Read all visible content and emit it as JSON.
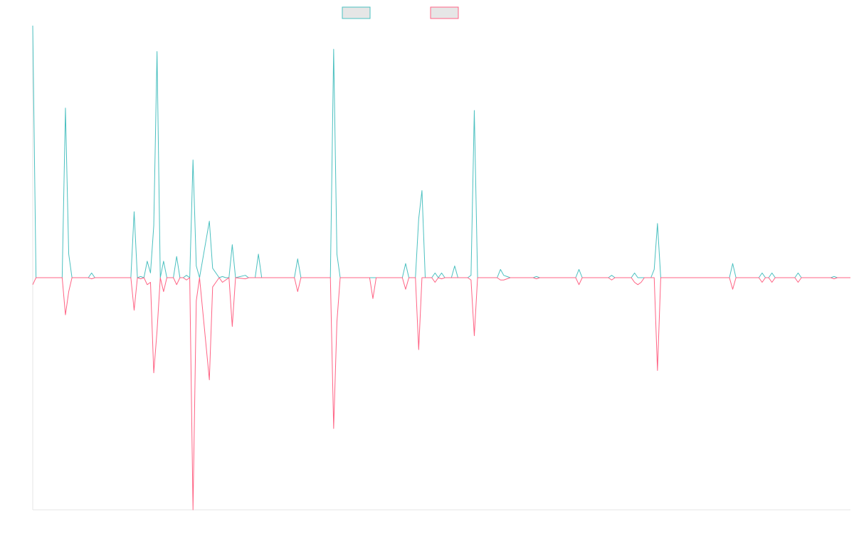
{
  "chart_data": {
    "type": "line",
    "title": "",
    "xlabel": "",
    "ylabel": "",
    "grid": false,
    "legend_position": "top-center",
    "x_count": 231,
    "ylim": [
      -1,
      1.07
    ],
    "series": [
      {
        "name": "",
        "color": "#4bc0c0",
        "fill": "#e6e6e6",
        "points": [
          [
            0,
            1.07
          ],
          [
            1,
            0
          ],
          [
            9,
            0
          ],
          [
            10,
            0.72
          ],
          [
            11,
            0.1
          ],
          [
            12,
            0
          ],
          [
            17,
            0
          ],
          [
            18,
            0.02
          ],
          [
            19,
            0
          ],
          [
            30,
            0
          ],
          [
            31,
            0.28
          ],
          [
            32,
            0
          ],
          [
            33,
            0.005
          ],
          [
            34,
            0
          ],
          [
            35,
            0.07
          ],
          [
            36,
            0.02
          ],
          [
            37,
            0.22
          ],
          [
            38,
            0.96
          ],
          [
            39,
            0
          ],
          [
            40,
            0.07
          ],
          [
            41,
            0
          ],
          [
            43,
            0
          ],
          [
            44,
            0.09
          ],
          [
            45,
            0
          ],
          [
            46,
            0
          ],
          [
            47,
            0.01
          ],
          [
            48,
            0
          ],
          [
            49,
            0.5
          ],
          [
            50,
            0.05
          ],
          [
            51,
            0
          ],
          [
            54,
            0.24
          ],
          [
            55,
            0.04
          ],
          [
            56,
            0.02
          ],
          [
            57,
            0
          ],
          [
            58,
            0.005
          ],
          [
            59,
            0
          ],
          [
            60,
            0
          ],
          [
            61,
            0.14
          ],
          [
            62,
            0
          ],
          [
            65,
            0.01
          ],
          [
            66,
            0
          ],
          [
            68,
            0
          ],
          [
            69,
            0.1
          ],
          [
            70,
            0
          ],
          [
            80,
            0
          ],
          [
            81,
            0.08
          ],
          [
            82,
            0
          ],
          [
            91,
            0
          ],
          [
            92,
            0.97
          ],
          [
            93,
            0.1
          ],
          [
            94,
            0
          ],
          [
            103,
            0
          ],
          [
            113,
            0
          ],
          [
            114,
            0.06
          ],
          [
            115,
            0
          ],
          [
            117,
            0
          ],
          [
            118,
            0.25
          ],
          [
            119,
            0.37
          ],
          [
            120,
            0
          ],
          [
            122,
            0
          ],
          [
            123,
            0.02
          ],
          [
            124,
            0
          ],
          [
            125,
            0.02
          ],
          [
            126,
            0
          ],
          [
            128,
            0
          ],
          [
            129,
            0.05
          ],
          [
            130,
            0
          ],
          [
            133,
            0
          ],
          [
            134,
            0.01
          ],
          [
            135,
            0.71
          ],
          [
            136,
            0
          ],
          [
            142,
            0
          ],
          [
            143,
            0.035
          ],
          [
            144,
            0.01
          ],
          [
            145,
            0.005
          ],
          [
            146,
            0
          ],
          [
            153,
            0
          ],
          [
            154,
            0.005
          ],
          [
            155,
            0
          ],
          [
            166,
            0
          ],
          [
            167,
            0.035
          ],
          [
            168,
            0
          ],
          [
            176,
            0
          ],
          [
            177,
            0.01
          ],
          [
            178,
            0
          ],
          [
            183,
            0
          ],
          [
            184,
            0.02
          ],
          [
            185,
            0
          ],
          [
            189,
            0
          ],
          [
            190,
            0.035
          ],
          [
            191,
            0.23
          ],
          [
            192,
            0
          ],
          [
            213,
            0
          ],
          [
            214,
            0.06
          ],
          [
            215,
            0
          ],
          [
            222,
            0
          ],
          [
            223,
            0.02
          ],
          [
            224,
            0
          ],
          [
            225,
            0
          ],
          [
            226,
            0.02
          ],
          [
            227,
            0
          ],
          [
            233,
            0
          ],
          [
            234,
            0.02
          ],
          [
            235,
            0
          ],
          [
            244,
            0
          ],
          [
            245,
            0.005
          ],
          [
            246,
            0
          ],
          [
            250,
            0
          ]
        ]
      },
      {
        "name": "",
        "color": "#ff6384",
        "fill": "#e6e6e6",
        "points": [
          [
            0,
            -0.03
          ],
          [
            1,
            0
          ],
          [
            9,
            0
          ],
          [
            10,
            -0.16
          ],
          [
            11,
            -0.06
          ],
          [
            12,
            0
          ],
          [
            17,
            0
          ],
          [
            18,
            -0.005
          ],
          [
            19,
            0
          ],
          [
            30,
            0
          ],
          [
            31,
            -0.14
          ],
          [
            32,
            0
          ],
          [
            33,
            -0.005
          ],
          [
            34,
            0
          ],
          [
            35,
            -0.03
          ],
          [
            36,
            -0.02
          ],
          [
            37,
            -0.41
          ],
          [
            38,
            -0.23
          ],
          [
            39,
            0
          ],
          [
            40,
            -0.06
          ],
          [
            41,
            0
          ],
          [
            43,
            0
          ],
          [
            44,
            -0.03
          ],
          [
            45,
            0
          ],
          [
            46,
            0
          ],
          [
            47,
            -0.01
          ],
          [
            48,
            0
          ],
          [
            49,
            -1.0
          ],
          [
            50,
            -0.1
          ],
          [
            51,
            0
          ],
          [
            54,
            -0.44
          ],
          [
            55,
            -0.04
          ],
          [
            56,
            -0.02
          ],
          [
            57,
            0
          ],
          [
            58,
            -0.02
          ],
          [
            59,
            -0.01
          ],
          [
            60,
            0
          ],
          [
            61,
            -0.21
          ],
          [
            62,
            0
          ],
          [
            65,
            -0.005
          ],
          [
            66,
            0
          ],
          [
            68,
            0
          ],
          [
            69,
            0
          ],
          [
            70,
            0
          ],
          [
            80,
            0
          ],
          [
            81,
            -0.06
          ],
          [
            82,
            0
          ],
          [
            91,
            0
          ],
          [
            92,
            -0.65
          ],
          [
            93,
            -0.19
          ],
          [
            94,
            0
          ],
          [
            103,
            0
          ],
          [
            104,
            -0.09
          ],
          [
            105,
            0
          ],
          [
            113,
            0
          ],
          [
            114,
            -0.05
          ],
          [
            115,
            0
          ],
          [
            117,
            0
          ],
          [
            118,
            -0.31
          ],
          [
            119,
            0
          ],
          [
            120,
            0
          ],
          [
            122,
            0
          ],
          [
            123,
            -0.02
          ],
          [
            124,
            0
          ],
          [
            125,
            -0.005
          ],
          [
            126,
            0
          ],
          [
            128,
            0
          ],
          [
            129,
            0
          ],
          [
            130,
            0
          ],
          [
            133,
            0
          ],
          [
            134,
            -0.01
          ],
          [
            135,
            -0.25
          ],
          [
            136,
            0
          ],
          [
            142,
            0
          ],
          [
            143,
            -0.01
          ],
          [
            144,
            -0.01
          ],
          [
            145,
            -0.005
          ],
          [
            146,
            0
          ],
          [
            153,
            0
          ],
          [
            154,
            -0.005
          ],
          [
            155,
            0
          ],
          [
            166,
            0
          ],
          [
            167,
            -0.03
          ],
          [
            168,
            0
          ],
          [
            176,
            0
          ],
          [
            177,
            -0.01
          ],
          [
            178,
            0
          ],
          [
            183,
            0
          ],
          [
            184,
            -0.02
          ],
          [
            185,
            -0.03
          ],
          [
            186,
            -0.02
          ],
          [
            187,
            0
          ],
          [
            190,
            0
          ],
          [
            191,
            -0.4
          ],
          [
            192,
            0
          ],
          [
            213,
            0
          ],
          [
            214,
            -0.05
          ],
          [
            215,
            0
          ],
          [
            222,
            0
          ],
          [
            223,
            -0.02
          ],
          [
            224,
            0
          ],
          [
            225,
            0
          ],
          [
            226,
            -0.02
          ],
          [
            227,
            0
          ],
          [
            233,
            0
          ],
          [
            234,
            -0.02
          ],
          [
            235,
            0
          ],
          [
            244,
            0
          ],
          [
            245,
            -0.005
          ],
          [
            246,
            0
          ],
          [
            250,
            0
          ]
        ]
      }
    ]
  }
}
